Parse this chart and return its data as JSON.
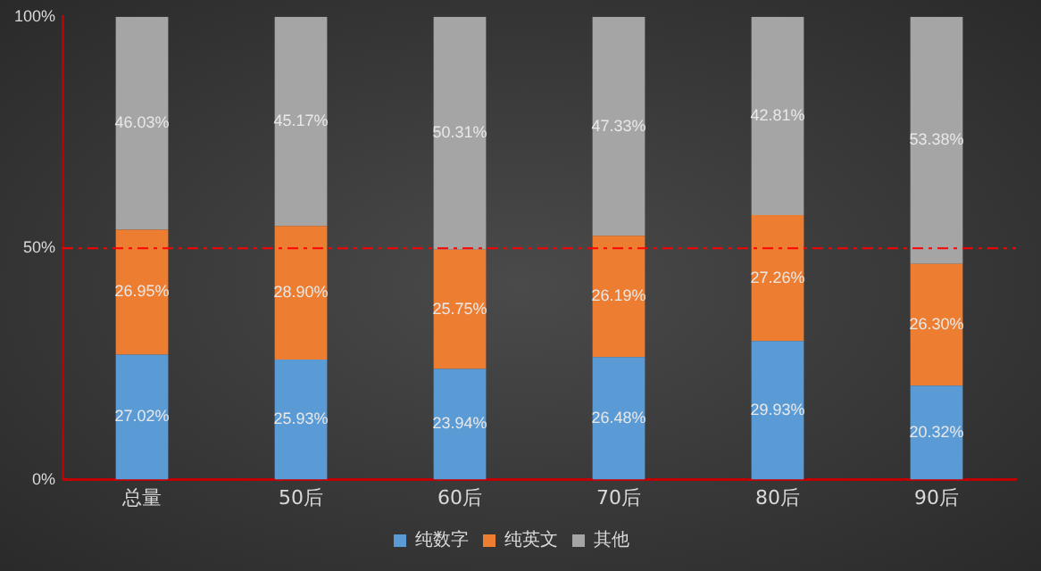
{
  "chart_data": {
    "type": "bar",
    "stacked": true,
    "categories": [
      "总量",
      "50后",
      "60后",
      "70后",
      "80后",
      "90后"
    ],
    "series": [
      {
        "name": "纯数字",
        "color": "#5b9bd5",
        "values": [
          27.02,
          25.93,
          23.94,
          26.48,
          29.93,
          20.32
        ],
        "value_labels": [
          "27.02%",
          "25.93%",
          "23.94%",
          "26.48%",
          "29.93%",
          "20.32%"
        ]
      },
      {
        "name": "纯英文",
        "color": "#ed7d31",
        "values": [
          26.95,
          28.9,
          25.75,
          26.19,
          27.26,
          26.3
        ],
        "value_labels": [
          "26.95%",
          "28.90%",
          "25.75%",
          "26.19%",
          "27.26%",
          "26.30%"
        ]
      },
      {
        "name": "其他",
        "color": "#a5a5a5",
        "values": [
          46.03,
          45.17,
          50.31,
          47.33,
          42.81,
          53.38
        ],
        "value_labels": [
          "46.03%",
          "45.17%",
          "50.31%",
          "47.33%",
          "42.81%",
          "53.38%"
        ]
      }
    ],
    "ylim": [
      0,
      100
    ],
    "yticks": [
      {
        "value": 0,
        "label": "0%"
      },
      {
        "value": 50,
        "label": "50%"
      },
      {
        "value": 100,
        "label": "100%"
      }
    ],
    "ref_lines": [
      {
        "axis": "y",
        "value": 50,
        "color": "#ff0000",
        "line_style": "dashed"
      }
    ],
    "grid": false,
    "legend": "bottom"
  }
}
